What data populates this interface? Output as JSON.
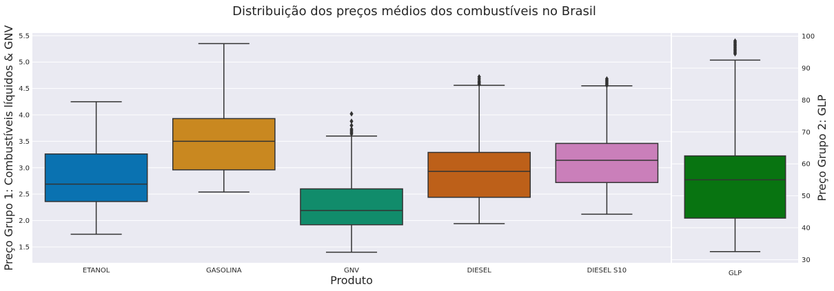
{
  "title": "Distribuição dos preços médios dos combustíveis no Brasil",
  "xlabel": "Produto",
  "ylabel_left": "Preço Grupo 1: Combustíveis líquidos & GNV",
  "ylabel_right": "Preço Grupo 2: GLP",
  "colors": {
    "background": "#eaeaf2",
    "grid": "#ffffff",
    "line": "#333333"
  },
  "chart_data": [
    {
      "type": "box",
      "ylim": [
        1.2,
        5.55
      ],
      "yticks": [
        "1.5",
        "2.0",
        "2.5",
        "3.0",
        "3.5",
        "4.0",
        "4.5",
        "5.0",
        "5.5"
      ],
      "grid": true,
      "categories": [
        "ETANOL",
        "GASOLINA",
        "GNV",
        "DIESEL",
        "DIESEL S10"
      ],
      "boxes": [
        {
          "name": "ETANOL",
          "color": "#0a72b1",
          "whislo": 1.74,
          "q1": 2.36,
          "med": 2.69,
          "q3": 3.26,
          "whishi": 4.25,
          "fliers": []
        },
        {
          "name": "GASOLINA",
          "color": "#c98820",
          "whislo": 2.54,
          "q1": 2.96,
          "med": 3.5,
          "q3": 3.93,
          "whishi": 5.35,
          "fliers": []
        },
        {
          "name": "GNV",
          "color": "#118c6b",
          "whislo": 1.4,
          "q1": 1.92,
          "med": 2.19,
          "q3": 2.6,
          "whishi": 3.6,
          "fliers": [
            3.64,
            3.67,
            3.7,
            3.73,
            3.8,
            3.88,
            4.02
          ]
        },
        {
          "name": "DIESEL",
          "color": "#bd6019",
          "whislo": 1.94,
          "q1": 2.44,
          "med": 2.93,
          "q3": 3.29,
          "whishi": 4.56,
          "fliers": [
            4.58,
            4.61,
            4.64,
            4.68,
            4.72
          ]
        },
        {
          "name": "DIESEL S10",
          "color": "#ca7fba",
          "whislo": 2.12,
          "q1": 2.72,
          "med": 3.14,
          "q3": 3.46,
          "whishi": 4.55,
          "fliers": [
            4.56,
            4.59,
            4.62,
            4.65,
            4.68
          ]
        }
      ]
    },
    {
      "type": "box",
      "ylim": [
        29,
        101
      ],
      "yticks": [
        "30",
        "40",
        "50",
        "60",
        "70",
        "80",
        "90",
        "100"
      ],
      "grid": true,
      "categories": [
        "GLP"
      ],
      "boxes": [
        {
          "name": "GLP",
          "color": "#087411",
          "whislo": 32.5,
          "q1": 43.0,
          "med": 55.0,
          "q3": 62.5,
          "whishi": 92.5,
          "fliers": [
            94.5,
            95.0,
            95.5,
            96.0,
            96.5,
            97.0,
            97.5,
            98.0,
            98.5
          ]
        }
      ]
    }
  ]
}
